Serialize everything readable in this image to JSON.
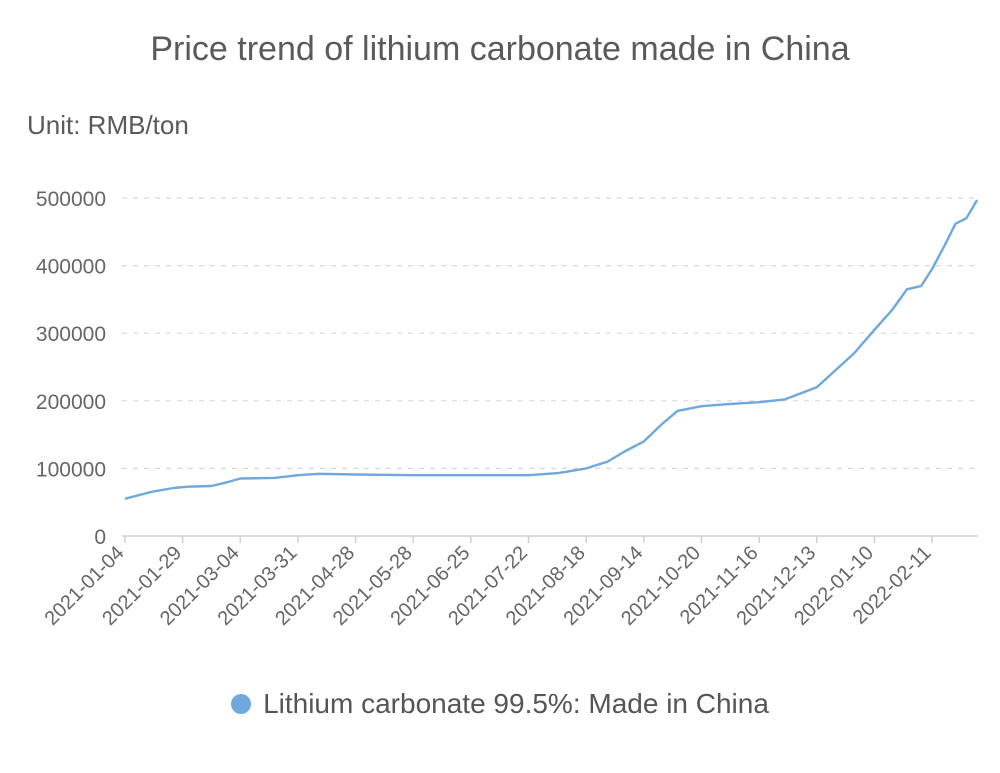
{
  "chart_data": {
    "type": "line",
    "title": "Price trend of lithium carbonate made in China",
    "unit_label": "Unit: RMB/ton",
    "ylim": [
      0,
      500000
    ],
    "yticks": [
      0,
      100000,
      200000,
      300000,
      400000,
      500000
    ],
    "xtick_labels": [
      "2021-01-04",
      "2021-01-29",
      "2021-03-04",
      "2021-03-31",
      "2021-04-28",
      "2021-05-28",
      "2021-06-25",
      "2021-07-22",
      "2021-08-18",
      "2021-09-14",
      "2021-10-20",
      "2021-11-16",
      "2021-12-13",
      "2022-01-10",
      "2022-02-11"
    ],
    "grid": true,
    "legend_position": "bottom",
    "line_color": "#6fa8dc",
    "series": [
      {
        "name": "Lithium carbonate 99.5%: Made in China",
        "points": [
          [
            "2021-01-04",
            55000
          ],
          [
            "2021-01-15",
            65000
          ],
          [
            "2021-01-25",
            71000
          ],
          [
            "2021-02-01",
            73000
          ],
          [
            "2021-02-15",
            74000
          ],
          [
            "2021-02-25",
            80000
          ],
          [
            "2021-03-04",
            85000
          ],
          [
            "2021-03-20",
            86000
          ],
          [
            "2021-03-31",
            90000
          ],
          [
            "2021-04-10",
            92000
          ],
          [
            "2021-04-28",
            91000
          ],
          [
            "2021-05-28",
            90000
          ],
          [
            "2021-06-25",
            90000
          ],
          [
            "2021-07-22",
            90000
          ],
          [
            "2021-08-05",
            93000
          ],
          [
            "2021-08-18",
            100000
          ],
          [
            "2021-08-28",
            110000
          ],
          [
            "2021-09-05",
            125000
          ],
          [
            "2021-09-14",
            140000
          ],
          [
            "2021-09-25",
            165000
          ],
          [
            "2021-10-05",
            185000
          ],
          [
            "2021-10-20",
            192000
          ],
          [
            "2021-11-01",
            195000
          ],
          [
            "2021-11-16",
            198000
          ],
          [
            "2021-11-28",
            202000
          ],
          [
            "2021-12-13",
            220000
          ],
          [
            "2021-12-22",
            245000
          ],
          [
            "2021-12-31",
            270000
          ],
          [
            "2022-01-10",
            305000
          ],
          [
            "2022-01-20",
            335000
          ],
          [
            "2022-01-28",
            365000
          ],
          [
            "2022-02-05",
            370000
          ],
          [
            "2022-02-11",
            395000
          ],
          [
            "2022-02-18",
            430000
          ],
          [
            "2022-02-24",
            462000
          ],
          [
            "2022-03-02",
            470000
          ],
          [
            "2022-03-08",
            497000
          ]
        ]
      }
    ]
  }
}
